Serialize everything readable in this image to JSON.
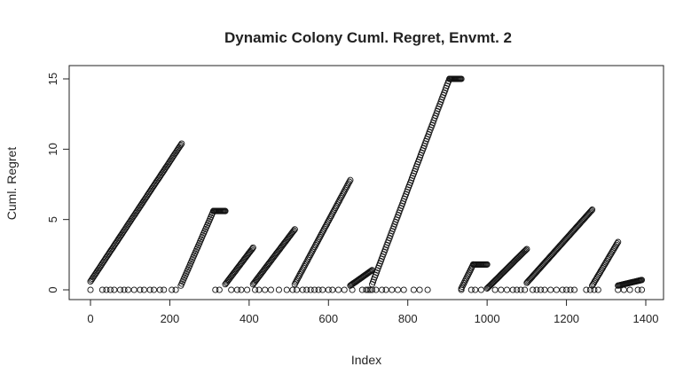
{
  "chart_data": {
    "type": "scatter",
    "title": "Dynamic Colony Cuml. Regret, Envmt. 2",
    "xlabel": "Index",
    "ylabel": "Cuml. Regret",
    "xlim": [
      0,
      1400
    ],
    "ylim": [
      0,
      15
    ],
    "xticks": [
      0,
      200,
      400,
      600,
      800,
      1000,
      1200,
      1400
    ],
    "yticks": [
      0,
      5,
      10,
      15
    ],
    "grid": false,
    "marker": "open-circle",
    "series_note_segments": [
      {
        "x_start": 0,
        "x_end": 230,
        "y_start": 0.6,
        "y_end": 10.4
      },
      {
        "x_start": 228,
        "x_end": 310,
        "y_start": 0.3,
        "y_end": 5.6
      },
      {
        "x_start": 310,
        "x_end": 340,
        "y_start": 5.6,
        "y_end": 5.6
      },
      {
        "x_start": 340,
        "x_end": 410,
        "y_start": 0.4,
        "y_end": 3.0
      },
      {
        "x_start": 410,
        "x_end": 515,
        "y_start": 0.4,
        "y_end": 4.3
      },
      {
        "x_start": 515,
        "x_end": 655,
        "y_start": 0.4,
        "y_end": 7.8
      },
      {
        "x_start": 655,
        "x_end": 710,
        "y_start": 0.3,
        "y_end": 1.4
      },
      {
        "x_start": 710,
        "x_end": 905,
        "y_start": 0.4,
        "y_end": 15.0
      },
      {
        "x_start": 905,
        "x_end": 935,
        "y_start": 15.0,
        "y_end": 15.0
      },
      {
        "x_start": 935,
        "x_end": 965,
        "y_start": 0.1,
        "y_end": 1.8
      },
      {
        "x_start": 965,
        "x_end": 1000,
        "y_start": 1.8,
        "y_end": 1.8
      },
      {
        "x_start": 1000,
        "x_end": 1100,
        "y_start": 0.1,
        "y_end": 2.9
      },
      {
        "x_start": 1100,
        "x_end": 1265,
        "y_start": 0.5,
        "y_end": 5.7
      },
      {
        "x_start": 1265,
        "x_end": 1330,
        "y_start": 0.3,
        "y_end": 3.4
      },
      {
        "x_start": 1330,
        "x_end": 1390,
        "y_start": 0.3,
        "y_end": 0.7
      }
    ],
    "zero_points_x": [
      0,
      30,
      40,
      50,
      60,
      75,
      85,
      95,
      110,
      125,
      135,
      150,
      160,
      175,
      185,
      205,
      215,
      315,
      325,
      355,
      370,
      380,
      395,
      415,
      425,
      440,
      455,
      475,
      495,
      510,
      520,
      535,
      545,
      555,
      565,
      575,
      585,
      600,
      610,
      625,
      640,
      660,
      685,
      695,
      700,
      705,
      710,
      720,
      735,
      745,
      760,
      775,
      790,
      815,
      830,
      850,
      935,
      960,
      970,
      985,
      1020,
      1035,
      1050,
      1065,
      1075,
      1085,
      1095,
      1115,
      1125,
      1135,
      1145,
      1160,
      1175,
      1190,
      1200,
      1210,
      1220,
      1250,
      1260,
      1270,
      1280,
      1330,
      1345,
      1360,
      1380,
      1390
    ]
  }
}
